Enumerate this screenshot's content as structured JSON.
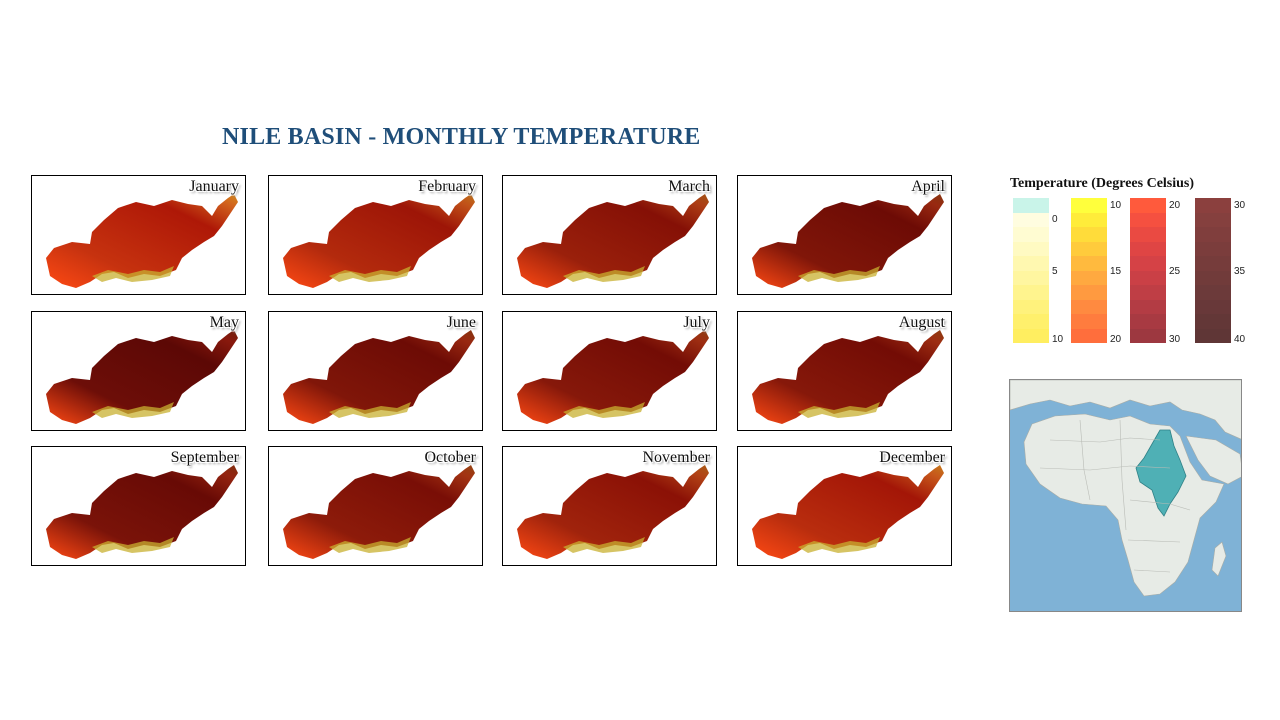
{
  "title": "NILE BASIN - MONTHLY TEMPERATURE",
  "months": [
    "January",
    "February",
    "March",
    "April",
    "May",
    "June",
    "July",
    "August",
    "September",
    "October",
    "November",
    "December"
  ],
  "month_warmth": [
    0.15,
    0.3,
    0.5,
    0.7,
    0.85,
    0.7,
    0.65,
    0.65,
    0.75,
    0.6,
    0.45,
    0.25
  ],
  "legend": {
    "title": "Temperature (Degrees Celsius)",
    "ramps": [
      {
        "ticks": [
          "0",
          "5",
          "10"
        ],
        "colors": [
          "#c9f4e9",
          "#fffde0",
          "#fffcd2",
          "#fffac2",
          "#fff8b0",
          "#fff6a0",
          "#fff48e",
          "#fff27c",
          "#fff06c",
          "#ffee60"
        ]
      },
      {
        "ticks": [
          "10",
          "15",
          "20"
        ],
        "colors": [
          "#ffff3c",
          "#ffec3a",
          "#ffdc3a",
          "#ffcb3c",
          "#ffba3e",
          "#ffa940",
          "#ff9a40",
          "#ff8a40",
          "#ff7c3e",
          "#ff6e3c"
        ]
      },
      {
        "ticks": [
          "20",
          "25",
          "30"
        ],
        "colors": [
          "#ff5a3c",
          "#f55040",
          "#ea4a42",
          "#df4544",
          "#d54246",
          "#ca4046",
          "#bf3e45",
          "#b33c44",
          "#a83a42",
          "#9d3840"
        ]
      },
      {
        "ticks": [
          "30",
          "35",
          "40"
        ],
        "colors": [
          "#8b403e",
          "#85403e",
          "#803e3d",
          "#7b3d3c",
          "#763c3b",
          "#713b3a",
          "#6c3a3a",
          "#683839",
          "#633737",
          "#5f3636"
        ]
      }
    ]
  },
  "colors": {
    "title": "#1f4e79",
    "ocean": "#7fb2d6",
    "land": "#e7ebe6",
    "basin": "#4fb0b5"
  }
}
